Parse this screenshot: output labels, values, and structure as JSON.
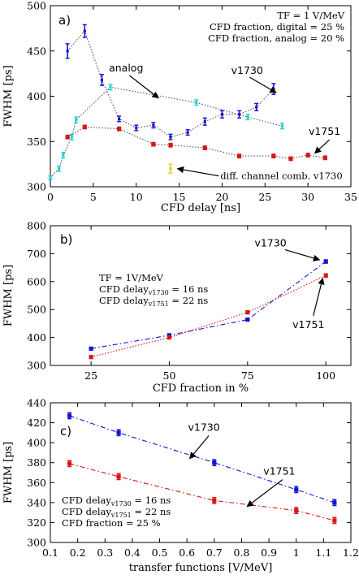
{
  "chart_data": [
    {
      "panel": "a)",
      "type": "scatter",
      "xlabel": "CFD delay [ns]",
      "ylabel": "FWHM [ps]",
      "xlim": [
        0,
        35
      ],
      "ylim": [
        300,
        500
      ],
      "xticks": [
        "0",
        "5",
        "10",
        "15",
        "20",
        "25",
        "30",
        "35"
      ],
      "yticks": [
        "300",
        "350",
        "400",
        "450",
        "500"
      ],
      "annotation_lines": [
        "TF = 1 V/MeV",
        "CFD fraction, digital = 25 %",
        "CFD fraction, analog = 20 %"
      ],
      "series": [
        {
          "name": "v1730",
          "color": "#1414d2",
          "line_color": "#555555",
          "line_style": "dotted",
          "marker": "errorbar",
          "x": [
            2,
            4,
            6,
            8,
            10,
            12,
            14,
            16,
            18,
            20,
            22,
            24,
            26
          ],
          "y": [
            450,
            472,
            418,
            375,
            365,
            368,
            355,
            360,
            372,
            380,
            380,
            388,
            408
          ],
          "err": [
            8,
            7,
            6,
            3,
            3,
            3,
            3,
            3,
            4,
            4,
            4,
            4,
            6
          ]
        },
        {
          "name": "v1751",
          "color": "#dc1414",
          "line_color": "#555555",
          "line_style": "dotted",
          "marker": "square",
          "x": [
            2,
            4,
            8,
            12,
            14,
            18,
            22,
            26,
            28,
            30,
            32
          ],
          "y": [
            355,
            366,
            364,
            347,
            346,
            343,
            334,
            334,
            331,
            335,
            332
          ],
          "err": [
            2,
            2,
            2,
            2,
            2,
            2,
            2,
            2,
            2,
            2,
            2
          ]
        },
        {
          "name": "analog",
          "color": "#20d0d0",
          "line_color": "#555555",
          "line_style": "dotted",
          "marker": "errorbar",
          "x": [
            0,
            1,
            1.5,
            2.5,
            3,
            7,
            17,
            23,
            27
          ],
          "y": [
            310,
            320,
            335,
            355,
            374,
            410,
            393,
            377,
            367
          ],
          "err": [
            2,
            3,
            3,
            3,
            3,
            3,
            3,
            3,
            3
          ]
        },
        {
          "name": "diff. channel comb. v1730",
          "color": "#e0d020",
          "line_color": null,
          "line_style": "none",
          "marker": "errorbar",
          "x": [
            14
          ],
          "y": [
            320
          ],
          "err": [
            5
          ]
        }
      ],
      "labels": [
        {
          "text": "analog",
          "arrow_to": [
            12.6,
            398
          ],
          "arrow_from": [
            9.2,
            423
          ]
        },
        {
          "text": "v1730",
          "arrow_to": [
            26.3,
            404
          ],
          "arrow_from": [
            23.2,
            421
          ]
        },
        {
          "text": "v1751",
          "arrow_to": [
            30.8,
            337
          ],
          "arrow_from": [
            32.5,
            352
          ]
        },
        {
          "text": "diff. channel comb. v1730",
          "arrow_to": [
            14.8,
            320
          ],
          "arrow_from": [
            19.6,
            312
          ]
        }
      ]
    },
    {
      "panel": "b)",
      "type": "line",
      "xlabel": "CFD fraction in %",
      "ylabel": "FWHM [ps]",
      "xlim": [
        12,
        108
      ],
      "ylim": [
        300,
        800
      ],
      "xticks": [
        "25",
        "50",
        "75",
        "100"
      ],
      "yticks": [
        "300",
        "400",
        "500",
        "600",
        "700",
        "800"
      ],
      "annotation_lines": [
        "TF = 1V/MeV",
        "CFD delay",
        "v1730",
        " = 16  ns",
        "CFD delay",
        "v1751",
        " = 22  ns"
      ],
      "series": [
        {
          "name": "v1730",
          "color": "#1414d2",
          "line_style": "dashdot",
          "x": [
            25,
            50,
            75,
            100
          ],
          "y": [
            360,
            408,
            464,
            672
          ],
          "err": [
            5,
            5,
            5,
            6
          ]
        },
        {
          "name": "v1751",
          "color": "#dc1414",
          "line_style": "dotted",
          "x": [
            25,
            50,
            75,
            100
          ],
          "y": [
            330,
            400,
            490,
            622
          ],
          "err": [
            5,
            5,
            5,
            6
          ]
        }
      ],
      "labels": [
        {
          "text": "v1730",
          "arrow_to": [
            98,
            678
          ],
          "arrow_from": [
            87,
            714
          ]
        },
        {
          "text": "v1751",
          "arrow_to": [
            99,
            612
          ],
          "arrow_from": [
            96,
            478
          ]
        }
      ]
    },
    {
      "panel": "c)",
      "type": "line",
      "xlabel": "transfer functions [V/MeV]",
      "ylabel": "FWHM [ps]",
      "xlim": [
        0.1,
        1.2
      ],
      "ylim": [
        300,
        440
      ],
      "xticks": [
        "0.1",
        "0.2",
        "0.3",
        "0.4",
        "0.5",
        "0.6",
        "0.7",
        "0.8",
        "0.9",
        "1",
        "1.1",
        "1.2"
      ],
      "yticks": [
        "300",
        "320",
        "340",
        "360",
        "380",
        "400",
        "420",
        "440"
      ],
      "annotation_lines": [
        "CFD delay",
        "v1730",
        " = 16  ns",
        "CFD delay",
        "v1751",
        " = 22  ns",
        "CFD fraction = 25 %"
      ],
      "series": [
        {
          "name": "v1730",
          "color": "#1414d2",
          "line_style": "dashdot",
          "x": [
            0.17,
            0.35,
            0.7,
            1.0,
            1.14
          ],
          "y": [
            427,
            410,
            380,
            353,
            340
          ],
          "err": [
            3,
            3,
            3,
            3,
            3
          ]
        },
        {
          "name": "v1751",
          "color": "#dc1414",
          "line_style": "dashdot",
          "x": [
            0.17,
            0.35,
            0.7,
            1.0,
            1.14
          ],
          "y": [
            379,
            366,
            342,
            332,
            322
          ],
          "err": [
            3,
            3,
            3,
            3,
            3
          ]
        }
      ],
      "labels": [
        {
          "text": "v1730",
          "arrow_to": [
            0.61,
            384
          ],
          "arrow_from": [
            0.68,
            407
          ]
        },
        {
          "text": "v1751",
          "arrow_to": [
            0.82,
            336
          ],
          "arrow_from": [
            0.95,
            363
          ]
        }
      ]
    }
  ]
}
